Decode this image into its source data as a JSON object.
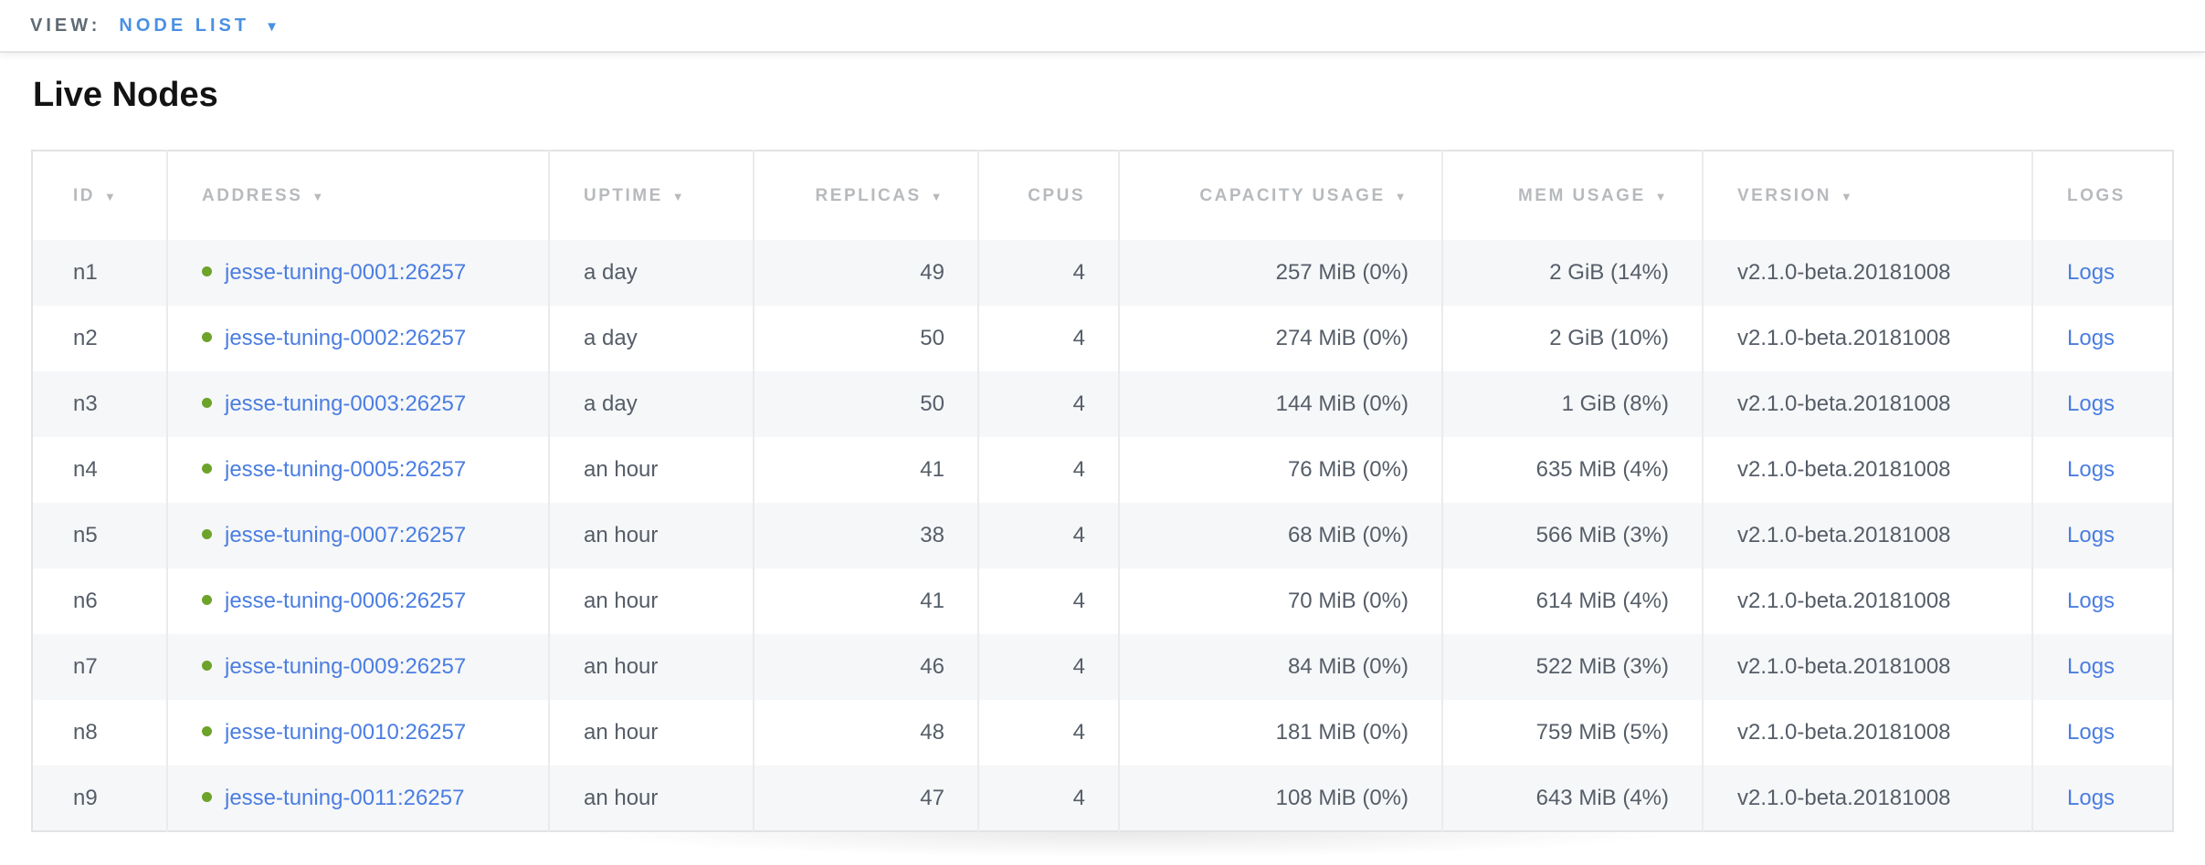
{
  "topbar": {
    "view_label": "VIEW:",
    "view_value": "NODE LIST"
  },
  "page": {
    "title": "Live Nodes"
  },
  "icons": {
    "dropdown": "▼",
    "sort": "▼"
  },
  "colors": {
    "topbar_blue": "#4a90e2",
    "link_blue": "#4a7de2",
    "status_green": "#6da32a",
    "header_gray": "#b7babd",
    "body_text": "#555d68"
  },
  "table": {
    "columns": [
      {
        "key": "id",
        "label": "ID",
        "sortable": true,
        "align": "left"
      },
      {
        "key": "address",
        "label": "ADDRESS",
        "sortable": true,
        "align": "left"
      },
      {
        "key": "uptime",
        "label": "UPTIME",
        "sortable": true,
        "align": "left"
      },
      {
        "key": "replicas",
        "label": "REPLICAS",
        "sortable": true,
        "align": "right"
      },
      {
        "key": "cpus",
        "label": "CPUS",
        "sortable": false,
        "align": "right"
      },
      {
        "key": "capacity",
        "label": "CAPACITY USAGE",
        "sortable": true,
        "align": "right"
      },
      {
        "key": "mem",
        "label": "MEM USAGE",
        "sortable": true,
        "align": "right"
      },
      {
        "key": "version",
        "label": "VERSION",
        "sortable": true,
        "align": "left"
      },
      {
        "key": "logs",
        "label": "LOGS",
        "sortable": false,
        "align": "left"
      }
    ],
    "rows": [
      {
        "id": "n1",
        "status": "live",
        "address": "jesse-tuning-0001:26257",
        "uptime": "a day",
        "replicas": "49",
        "cpus": "4",
        "capacity": "257 MiB (0%)",
        "mem": "2 GiB (14%)",
        "version": "v2.1.0-beta.20181008",
        "logs": "Logs"
      },
      {
        "id": "n2",
        "status": "live",
        "address": "jesse-tuning-0002:26257",
        "uptime": "a day",
        "replicas": "50",
        "cpus": "4",
        "capacity": "274 MiB (0%)",
        "mem": "2 GiB (10%)",
        "version": "v2.1.0-beta.20181008",
        "logs": "Logs"
      },
      {
        "id": "n3",
        "status": "live",
        "address": "jesse-tuning-0003:26257",
        "uptime": "a day",
        "replicas": "50",
        "cpus": "4",
        "capacity": "144 MiB (0%)",
        "mem": "1 GiB (8%)",
        "version": "v2.1.0-beta.20181008",
        "logs": "Logs"
      },
      {
        "id": "n4",
        "status": "live",
        "address": "jesse-tuning-0005:26257",
        "uptime": "an hour",
        "replicas": "41",
        "cpus": "4",
        "capacity": "76 MiB (0%)",
        "mem": "635 MiB (4%)",
        "version": "v2.1.0-beta.20181008",
        "logs": "Logs"
      },
      {
        "id": "n5",
        "status": "live",
        "address": "jesse-tuning-0007:26257",
        "uptime": "an hour",
        "replicas": "38",
        "cpus": "4",
        "capacity": "68 MiB (0%)",
        "mem": "566 MiB (3%)",
        "version": "v2.1.0-beta.20181008",
        "logs": "Logs"
      },
      {
        "id": "n6",
        "status": "live",
        "address": "jesse-tuning-0006:26257",
        "uptime": "an hour",
        "replicas": "41",
        "cpus": "4",
        "capacity": "70 MiB (0%)",
        "mem": "614 MiB (4%)",
        "version": "v2.1.0-beta.20181008",
        "logs": "Logs"
      },
      {
        "id": "n7",
        "status": "live",
        "address": "jesse-tuning-0009:26257",
        "uptime": "an hour",
        "replicas": "46",
        "cpus": "4",
        "capacity": "84 MiB (0%)",
        "mem": "522 MiB (3%)",
        "version": "v2.1.0-beta.20181008",
        "logs": "Logs"
      },
      {
        "id": "n8",
        "status": "live",
        "address": "jesse-tuning-0010:26257",
        "uptime": "an hour",
        "replicas": "48",
        "cpus": "4",
        "capacity": "181 MiB (0%)",
        "mem": "759 MiB (5%)",
        "version": "v2.1.0-beta.20181008",
        "logs": "Logs"
      },
      {
        "id": "n9",
        "status": "live",
        "address": "jesse-tuning-0011:26257",
        "uptime": "an hour",
        "replicas": "47",
        "cpus": "4",
        "capacity": "108 MiB (0%)",
        "mem": "643 MiB (4%)",
        "version": "v2.1.0-beta.20181008",
        "logs": "Logs"
      }
    ]
  }
}
